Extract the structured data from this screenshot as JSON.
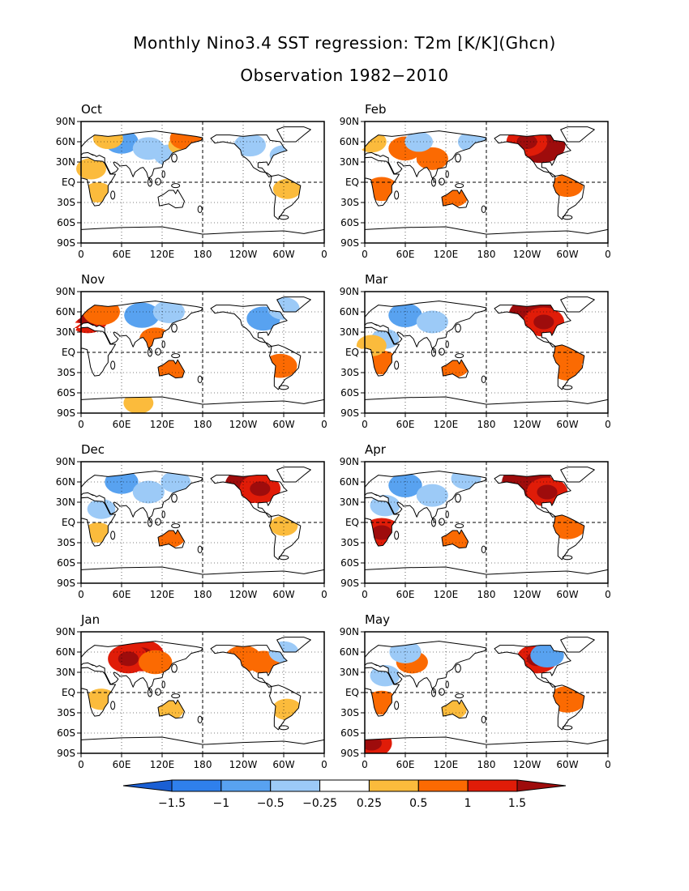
{
  "figure": {
    "title": "Monthly Nino3.4 SST regression: T2m [K/K](Ghcn)",
    "subtitle": "Observation 1982−2010"
  },
  "axes": {
    "lat_ticks": [
      "90N",
      "60N",
      "30N",
      "EQ",
      "30S",
      "60S",
      "90S"
    ],
    "lon_ticks": [
      "0",
      "60E",
      "120E",
      "180",
      "120W",
      "60W",
      "0"
    ]
  },
  "panels": [
    {
      "label": "Oct",
      "blobs": [
        [
          60,
          60,
          -0.6
        ],
        [
          100,
          50,
          -0.5
        ],
        [
          130,
          40,
          -0.4
        ],
        [
          40,
          65,
          0.4
        ],
        [
          150,
          55,
          0.3
        ],
        [
          15,
          20,
          0.4
        ],
        [
          25,
          -15,
          0.3
        ],
        [
          250,
          55,
          -0.5
        ],
        [
          300,
          40,
          -0.3
        ],
        [
          305,
          -10,
          0.3
        ],
        [
          155,
          65,
          0.5
        ]
      ]
    },
    {
      "label": "Feb",
      "blobs": [
        [
          60,
          50,
          0.6
        ],
        [
          100,
          35,
          0.5
        ],
        [
          10,
          60,
          0.4
        ],
        [
          25,
          -10,
          0.6
        ],
        [
          130,
          -20,
          0.5
        ],
        [
          260,
          55,
          1.5
        ],
        [
          240,
          60,
          1.0
        ],
        [
          300,
          -5,
          0.5
        ],
        [
          160,
          60,
          -0.4
        ],
        [
          80,
          60,
          -0.3
        ],
        [
          350,
          10,
          0.4
        ]
      ]
    },
    {
      "label": "Nov",
      "blobs": [
        [
          10,
          50,
          1.0
        ],
        [
          30,
          60,
          0.8
        ],
        [
          90,
          55,
          -0.7
        ],
        [
          130,
          60,
          -0.5
        ],
        [
          135,
          -25,
          0.8
        ],
        [
          295,
          -20,
          0.6
        ],
        [
          270,
          50,
          -0.6
        ],
        [
          300,
          65,
          -0.5
        ],
        [
          110,
          20,
          0.5
        ],
        [
          85,
          -75,
          0.4
        ]
      ]
    },
    {
      "label": "Mar",
      "blobs": [
        [
          60,
          55,
          -0.6
        ],
        [
          100,
          45,
          -0.5
        ],
        [
          30,
          20,
          -0.3
        ],
        [
          25,
          -15,
          0.6
        ],
        [
          130,
          -20,
          0.6
        ],
        [
          250,
          55,
          1.5
        ],
        [
          265,
          45,
          1.0
        ],
        [
          300,
          -5,
          0.8
        ],
        [
          300,
          -25,
          0.5
        ],
        [
          10,
          10,
          0.4
        ]
      ]
    },
    {
      "label": "Dec",
      "blobs": [
        [
          60,
          60,
          -0.6
        ],
        [
          100,
          45,
          -0.5
        ],
        [
          140,
          60,
          -0.4
        ],
        [
          30,
          20,
          -0.3
        ],
        [
          250,
          55,
          1.5
        ],
        [
          265,
          50,
          1.0
        ],
        [
          130,
          -20,
          0.6
        ],
        [
          25,
          -15,
          0.3
        ],
        [
          300,
          -5,
          0.3
        ]
      ]
    },
    {
      "label": "Apr",
      "blobs": [
        [
          60,
          55,
          -0.6
        ],
        [
          100,
          40,
          -0.5
        ],
        [
          30,
          25,
          -0.4
        ],
        [
          25,
          -15,
          1.0
        ],
        [
          135,
          -20,
          0.8
        ],
        [
          240,
          60,
          1.5
        ],
        [
          270,
          45,
          1.0
        ],
        [
          300,
          -5,
          0.8
        ],
        [
          150,
          65,
          -0.4
        ]
      ]
    },
    {
      "label": "Jan",
      "blobs": [
        [
          90,
          55,
          1.2
        ],
        [
          70,
          50,
          1.0
        ],
        [
          110,
          45,
          0.6
        ],
        [
          30,
          -10,
          0.4
        ],
        [
          240,
          50,
          0.8
        ],
        [
          270,
          45,
          0.5
        ],
        [
          300,
          60,
          -0.4
        ],
        [
          305,
          -25,
          0.4
        ],
        [
          130,
          -25,
          0.4
        ]
      ]
    },
    {
      "label": "May",
      "blobs": [
        [
          70,
          45,
          0.5
        ],
        [
          60,
          60,
          -0.5
        ],
        [
          30,
          25,
          -0.4
        ],
        [
          25,
          -15,
          0.6
        ],
        [
          255,
          50,
          1.0
        ],
        [
          270,
          55,
          -0.6
        ],
        [
          300,
          -10,
          0.8
        ],
        [
          10,
          -75,
          1.0
        ],
        [
          130,
          -25,
          0.3
        ]
      ]
    }
  ],
  "colorbar": {
    "levels": [
      -1.5,
      -1,
      -0.5,
      -0.25,
      0.25,
      0.5,
      1,
      1.5
    ],
    "labels": [
      "−1.5",
      "−1",
      "−0.5",
      "−0.25",
      "0.25",
      "0.5",
      "1",
      "1.5"
    ],
    "colors": [
      "#1a5fd4",
      "#2f80ec",
      "#58a2f0",
      "#9ccaf7",
      "#ffffff",
      "#fbbb3c",
      "#fb6a02",
      "#e01c08",
      "#9e0c0c"
    ]
  }
}
